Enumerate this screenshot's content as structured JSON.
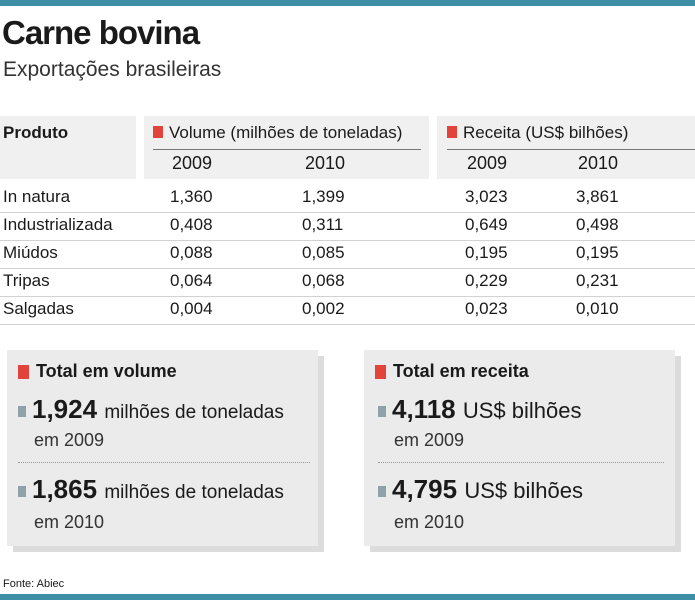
{
  "chart_data": {
    "type": "table",
    "title": "Carne bovina",
    "subtitle": "Exportações brasileiras",
    "columns": {
      "product": "Produto",
      "volume": "Volume (milhões de toneladas)",
      "revenue": "Receita (US$ bilhões)",
      "years": [
        "2009",
        "2010",
        "2009",
        "2010"
      ]
    },
    "rows": [
      {
        "name": "In natura",
        "values": [
          "1,360",
          "1,399",
          "3,023",
          "3,861"
        ]
      },
      {
        "name": "Industrializada",
        "values": [
          "0,408",
          "0,311",
          "0,649",
          "0,498"
        ]
      },
      {
        "name": "Miúdos",
        "values": [
          "0,088",
          "0,085",
          "0,195",
          "0,195"
        ]
      },
      {
        "name": "Tripas",
        "values": [
          "0,064",
          "0,068",
          "0,229",
          "0,231"
        ]
      },
      {
        "name": "Salgadas",
        "values": [
          "0,004",
          "0,002",
          "0,023",
          "0,010"
        ]
      }
    ],
    "totals": {
      "volume": {
        "title": "Total em volume",
        "items": [
          {
            "value": "1,924",
            "unit": "milhões de toneladas",
            "year": "em 2009"
          },
          {
            "value": "1,865",
            "unit": "milhões de toneladas",
            "year": "em 2010"
          }
        ]
      },
      "revenue": {
        "title": "Total em receita",
        "items": [
          {
            "value": "4,118",
            "unit": "US$ bilhões",
            "year": "em 2009"
          },
          {
            "value": "4,795",
            "unit": "US$ bilhões",
            "year": "em 2010"
          }
        ]
      }
    },
    "source": "Fonte: Abiec"
  },
  "colors": {
    "accent": "#3e8ea6",
    "marker": "#e0443a",
    "bullet": "#8fa1a9"
  }
}
